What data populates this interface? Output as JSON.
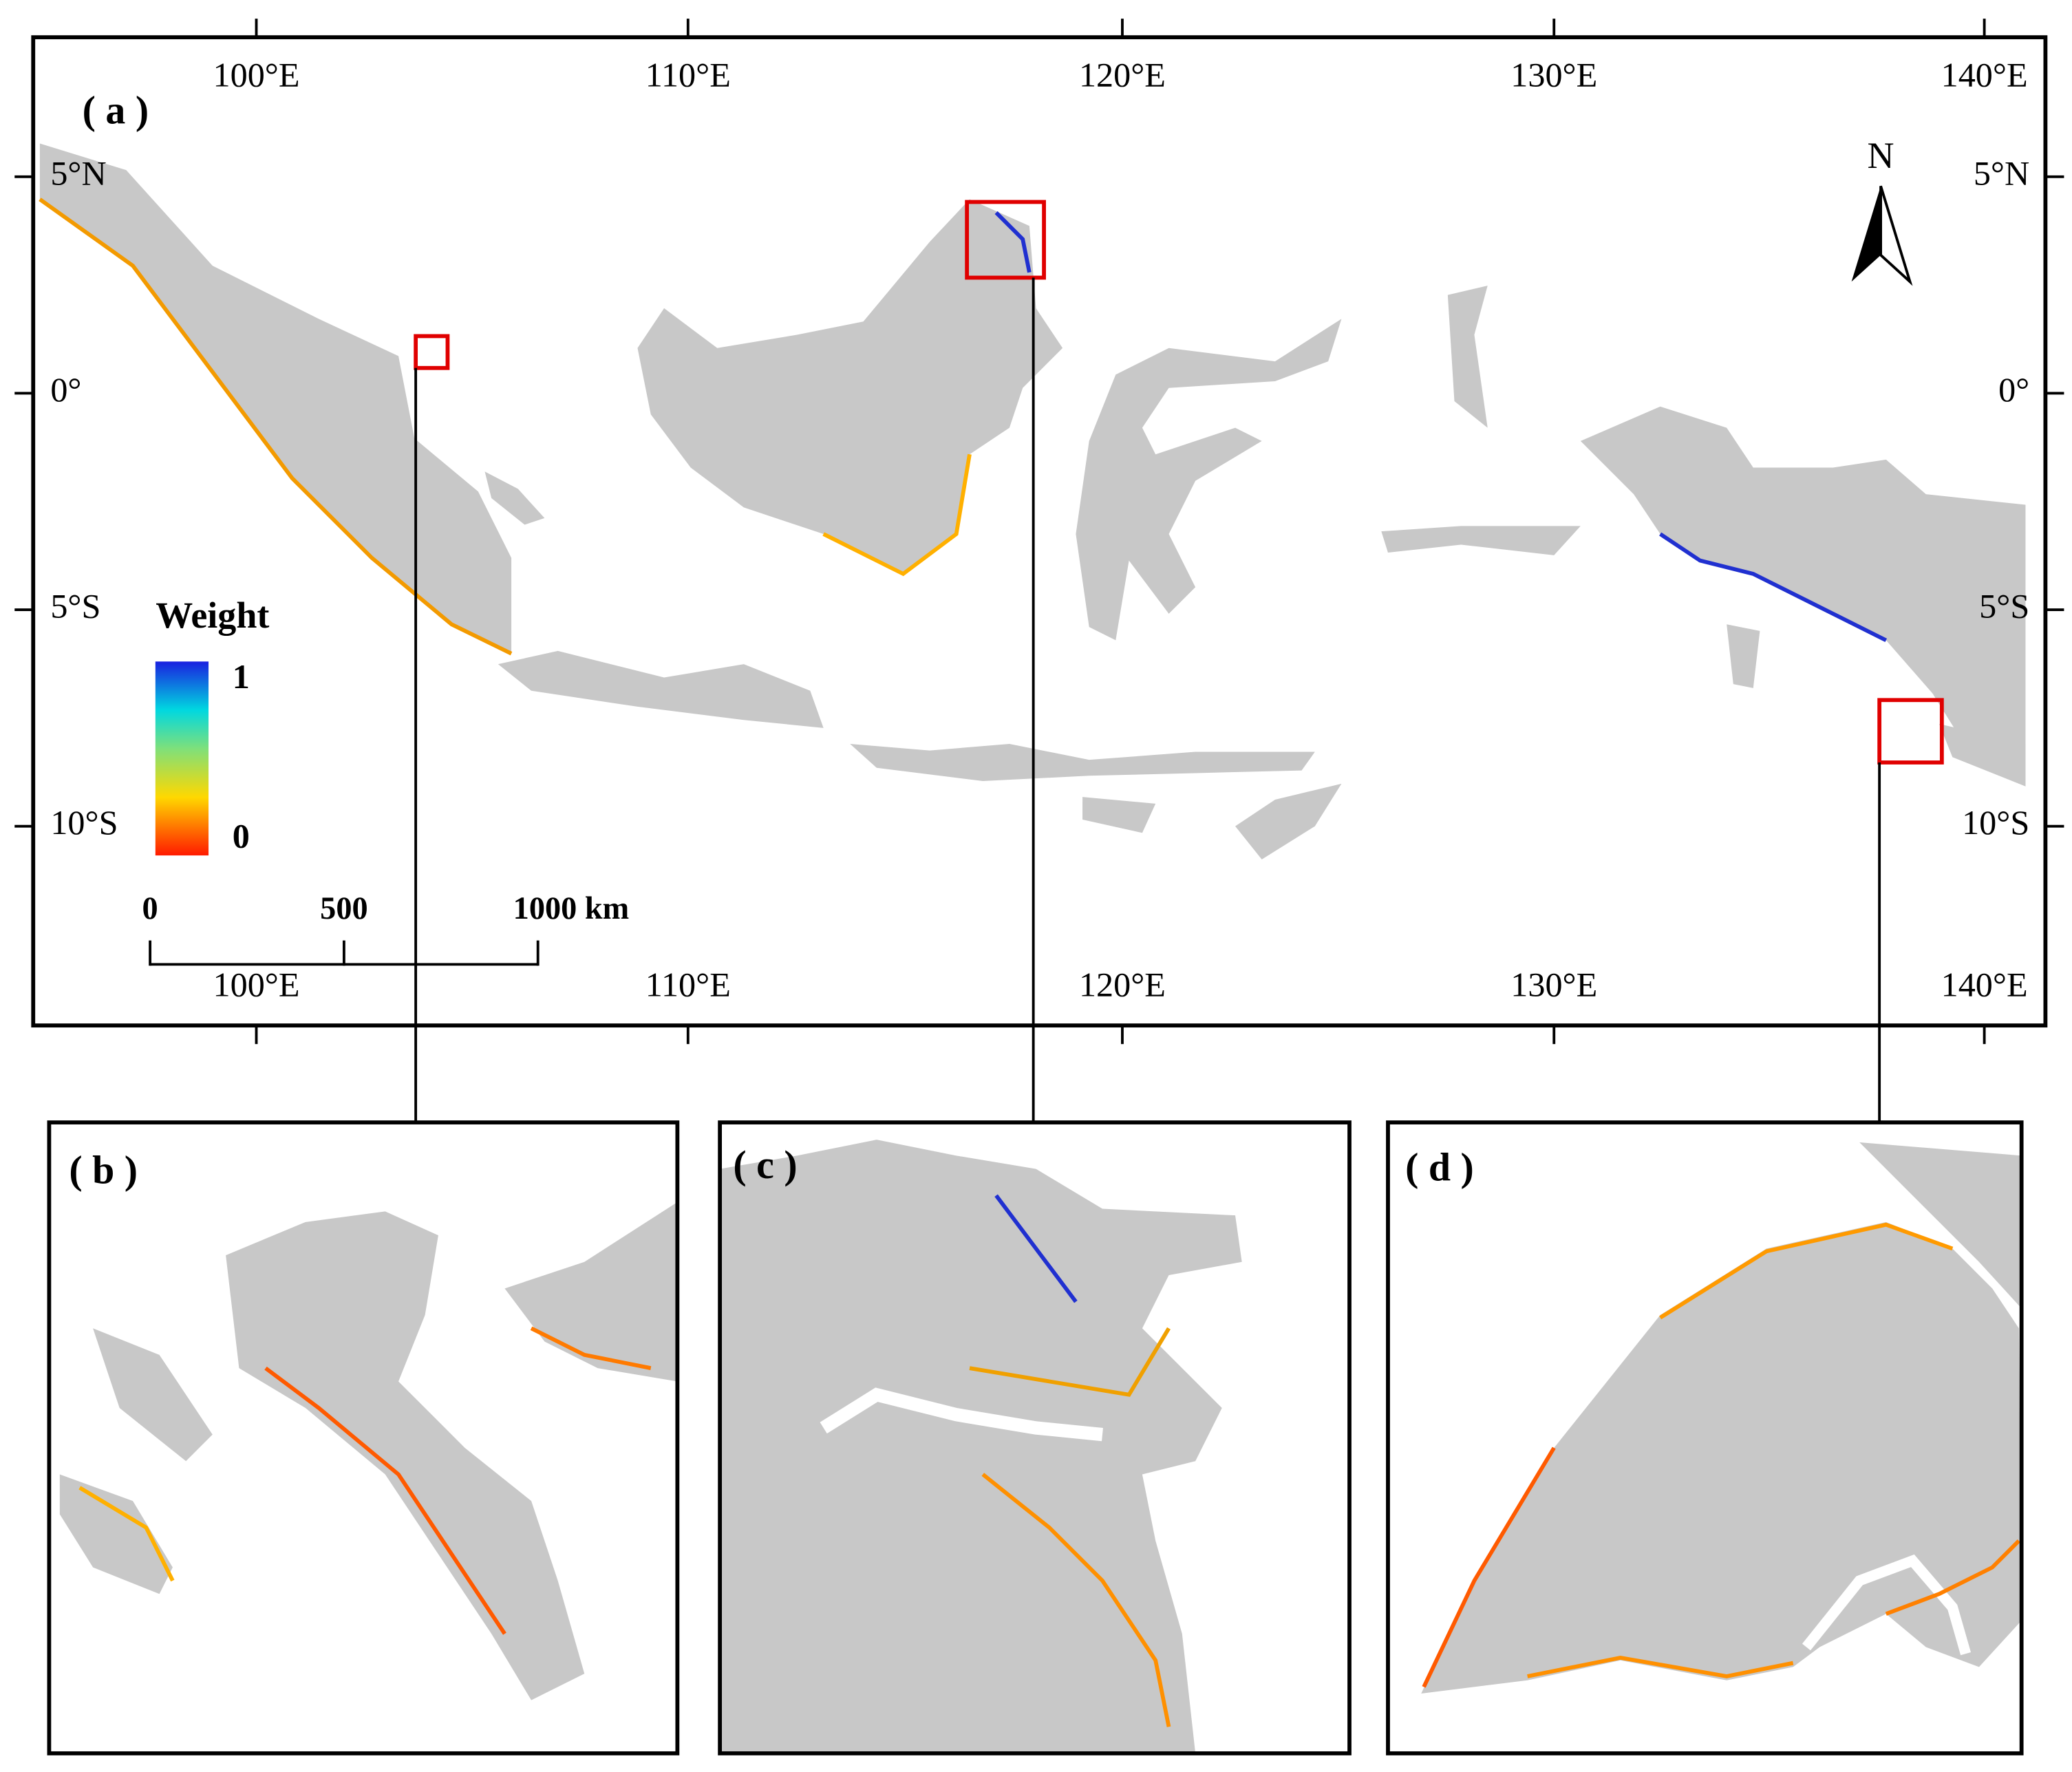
{
  "map": {
    "panels": {
      "a": "( a )",
      "b": "( b )",
      "c": "( c )",
      "d": "( d )"
    },
    "lon_labels": [
      "100°E",
      "110°E",
      "120°E",
      "130°E",
      "140°E"
    ],
    "lat_labels": [
      "5°N",
      "0°",
      "5°S",
      "10°S"
    ],
    "legend": {
      "title": "Weight",
      "max_label": "1",
      "min_label": "0"
    },
    "scale_bar": {
      "labels": [
        "0",
        "500",
        "1000 km"
      ]
    },
    "north": "N"
  }
}
